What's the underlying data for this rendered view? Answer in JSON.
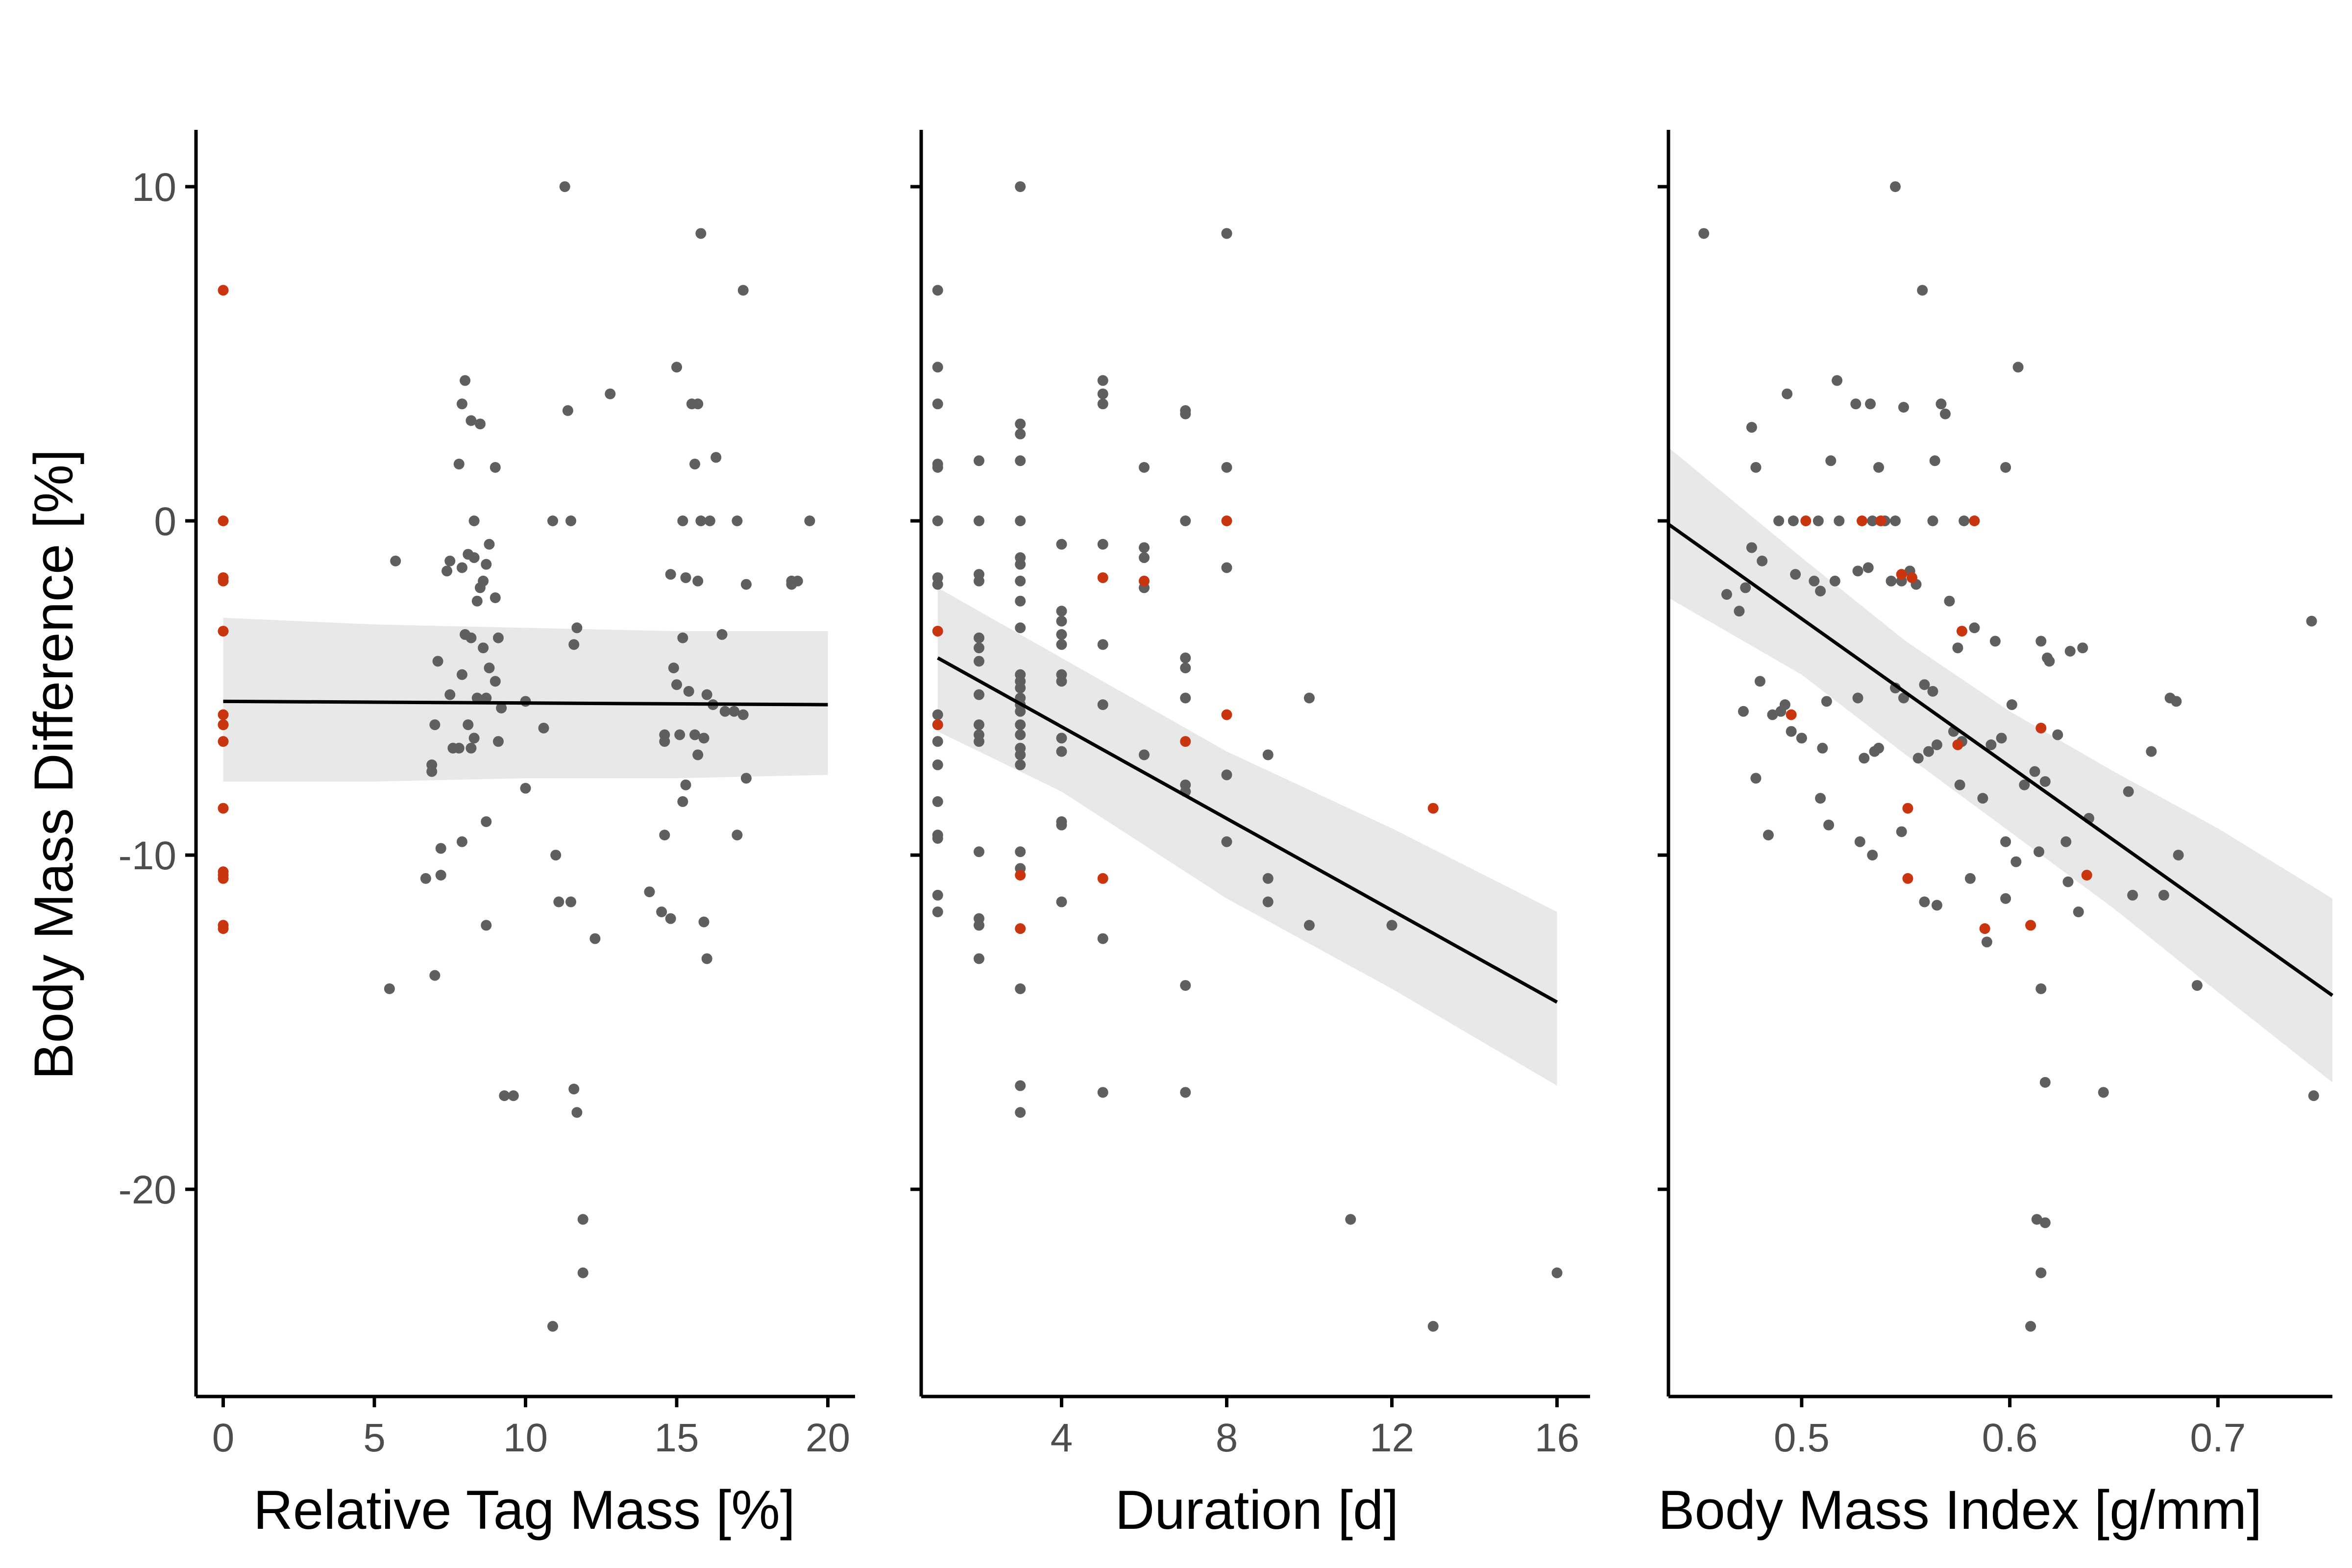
{
  "ylabel": "Body Mass Difference [%]",
  "colors": {
    "point": "#5f5f5f",
    "highlight": "#c8350e",
    "band": "#e8e8e8",
    "line": "#000000",
    "axis": "#000000"
  },
  "chart_data": [
    {
      "type": "scatter",
      "xlabel": "Relative Tag Mass [%]",
      "ylabel": "Body Mass Difference [%]",
      "xlim": [
        -0.9,
        20.9
      ],
      "ylim": [
        -26.2,
        11.7
      ],
      "xticks": [
        0,
        5,
        10,
        15,
        20
      ],
      "yticks": [
        10,
        0,
        -10,
        -20
      ],
      "ytick_labels": [
        "10",
        "0",
        "-10",
        "-20"
      ],
      "regression": {
        "x": [
          0,
          20
        ],
        "y": [
          -5.4,
          -5.5
        ]
      },
      "confidence_band": {
        "x": [
          0,
          5,
          10,
          15,
          20
        ],
        "lower": [
          -7.8,
          -7.8,
          -7.7,
          -7.7,
          -7.6
        ],
        "upper": [
          -2.9,
          -3.1,
          -3.2,
          -3.3,
          -3.3
        ]
      },
      "highlighted": {
        "x": [
          0,
          0,
          0,
          0,
          0,
          0,
          0,
          0,
          0,
          0,
          0,
          0,
          0,
          0,
          0
        ],
        "y": [
          6.9,
          0,
          -1.7,
          -1.8,
          -3.3,
          -5.8,
          -6.1,
          -6.6,
          -8.6,
          -10.6,
          -10.7,
          -12.1,
          -12.2,
          -6.1,
          -10.5
        ]
      },
      "points": {
        "x": [
          11.3,
          15.8,
          17.2,
          15.0,
          8.0,
          7.9,
          8.5,
          12.8,
          8.2,
          11.4,
          15.5,
          15.7,
          15.6,
          16.3,
          7.8,
          9.0,
          10.9,
          11.5,
          8.3,
          15.2,
          15.8,
          16.1,
          17.0,
          19.4,
          8.8,
          7.5,
          8.1,
          8.3,
          7.4,
          8.6,
          7.9,
          8.7,
          8.5,
          9.0,
          8.4,
          11.7,
          14.8,
          15.3,
          15.7,
          17.3,
          18.8,
          19.0,
          5.7,
          8.0,
          8.2,
          8.6,
          9.1,
          11.6,
          15.2,
          16.5,
          8.8,
          7.1,
          7.9,
          9.0,
          14.9,
          15.0,
          16.0,
          8.4,
          9.2,
          8.7,
          7.5,
          16.2,
          16.6,
          16.9,
          17.2,
          8.1,
          7.0,
          10.0,
          15.4,
          14.6,
          15.1,
          15.9,
          6.9,
          6.9,
          7.6,
          7.8,
          8.3,
          8.2,
          9.1,
          14.6,
          15.7,
          10.6,
          15.6,
          17.3,
          15.2,
          8.7,
          10.0,
          11.0,
          7.2,
          7.9,
          15.3,
          17.0,
          14.6,
          6.7,
          7.2,
          14.1,
          15.9,
          11.1,
          14.5,
          14.8,
          12.3,
          16.0,
          8.7,
          7.0,
          5.5,
          11.5,
          9.3,
          9.6,
          11.6,
          11.7,
          11.9,
          11.9,
          10.9,
          18.8
        ],
        "y": [
          10.0,
          8.6,
          6.9,
          4.6,
          4.2,
          3.5,
          2.9,
          3.8,
          3.0,
          3.3,
          3.5,
          3.5,
          1.7,
          1.9,
          1.7,
          1.6,
          0,
          0,
          0,
          0,
          0,
          0,
          0,
          0,
          -0.7,
          -1.2,
          -1.0,
          -1.1,
          -1.5,
          -1.8,
          -1.4,
          -1.3,
          -2.0,
          -2.3,
          -2.4,
          -3.2,
          -1.6,
          -1.7,
          -1.8,
          -1.9,
          -1.9,
          -1.8,
          -1.2,
          -3.4,
          -3.5,
          -3.8,
          -3.5,
          -3.7,
          -3.5,
          -3.4,
          -4.4,
          -4.2,
          -4.6,
          -4.8,
          -4.4,
          -4.9,
          -5.2,
          -5.3,
          -5.6,
          -5.3,
          -5.2,
          -5.5,
          -5.7,
          -5.7,
          -5.8,
          -6.1,
          -6.1,
          -5.4,
          -5.1,
          -6.4,
          -6.4,
          -6.5,
          -7.3,
          -7.5,
          -6.8,
          -6.8,
          -6.5,
          -6.8,
          -6.6,
          -6.6,
          -7.0,
          -6.2,
          -6.4,
          -7.7,
          -8.4,
          -9.0,
          -8.0,
          -10.0,
          -9.8,
          -9.6,
          -7.9,
          -9.4,
          -9.4,
          -10.7,
          -10.6,
          -11.1,
          -12.0,
          -11.4,
          -11.7,
          -11.9,
          -12.5,
          -13.1,
          -12.1,
          -13.6,
          -14.0,
          -11.4,
          -17.2,
          -17.2,
          -17.0,
          -17.7,
          -20.9,
          -22.5,
          -24.1,
          -1.8
        ]
      }
    },
    {
      "type": "scatter",
      "xlabel": "Duration [d]",
      "ylabel": "Body Mass Difference [%]",
      "xlim": [
        0.6,
        16.8
      ],
      "ylim": [
        -26.2,
        11.7
      ],
      "xticks": [
        4,
        8,
        12,
        16
      ],
      "yticks": [
        10,
        0,
        -10,
        -20
      ],
      "regression": {
        "x": [
          1,
          16
        ],
        "y": [
          -4.1,
          -14.4
        ]
      },
      "confidence_band": {
        "x": [
          1,
          4,
          8,
          12,
          16
        ],
        "lower": [
          -6.3,
          -8.1,
          -11.3,
          -14.0,
          -16.9
        ],
        "upper": [
          -2.0,
          -4.1,
          -6.9,
          -9.2,
          -11.7
        ]
      },
      "highlighted": {
        "x": [
          1,
          1,
          3,
          3,
          5,
          5,
          6,
          7,
          8,
          8,
          13
        ],
        "y": [
          -3.3,
          -6.1,
          -10.6,
          -12.2,
          -1.7,
          -10.7,
          -1.8,
          -6.6,
          0,
          -5.8,
          -8.6
        ]
      },
      "points": {
        "x": [
          3,
          8,
          1,
          1,
          1,
          1,
          1,
          1,
          1,
          1,
          1,
          1,
          1,
          1,
          1,
          1,
          1,
          1,
          1,
          2,
          2,
          2,
          2,
          2,
          2,
          2,
          2,
          2,
          2,
          2,
          2,
          2,
          2,
          2,
          3,
          3,
          3,
          3,
          3,
          3,
          3,
          3,
          3,
          3,
          3,
          3,
          3,
          3,
          3,
          3,
          3,
          3,
          3,
          3,
          3,
          3,
          3,
          3,
          3,
          4,
          4,
          4,
          4,
          4,
          4,
          4,
          4,
          4,
          4,
          4,
          4,
          5,
          5,
          5,
          5,
          5,
          5,
          5,
          5,
          6,
          6,
          6,
          6,
          6,
          7,
          7,
          7,
          7,
          7,
          7,
          7,
          7,
          7,
          7,
          8,
          8,
          8,
          8,
          8,
          9,
          9,
          9,
          10,
          10,
          12,
          11,
          13,
          16
        ],
        "y": [
          10.0,
          8.6,
          6.9,
          4.6,
          3.5,
          1.7,
          1.6,
          0,
          -1.7,
          -1.9,
          -5.8,
          -6.1,
          -6.6,
          -7.3,
          -8.4,
          -9.4,
          -9.5,
          -11.2,
          -11.7,
          1.8,
          0,
          -1.6,
          -1.8,
          -3.5,
          -3.8,
          -4.2,
          -5.2,
          -6.1,
          -6.4,
          -6.6,
          -9.9,
          -11.9,
          -12.1,
          -13.1,
          2.9,
          2.6,
          1.8,
          0,
          -1.1,
          -1.3,
          -1.8,
          -2.4,
          -3.2,
          -4.6,
          -4.8,
          -5.0,
          -5.3,
          -5.5,
          -5.7,
          -6.1,
          -6.4,
          -6.8,
          -7.0,
          -7.3,
          -9.9,
          -10.4,
          -14.0,
          -16.9,
          -17.7,
          -0.7,
          -2.7,
          -3.0,
          -3.4,
          -3.7,
          -4.6,
          -4.8,
          -6.5,
          -6.9,
          -9.0,
          -9.1,
          -11.4,
          4.2,
          3.8,
          3.5,
          -0.7,
          -3.7,
          -5.5,
          -12.5,
          -17.1,
          1.6,
          -0.8,
          -1.1,
          -2.0,
          -7.0,
          3.3,
          3.2,
          0,
          -4.1,
          -4.4,
          -5.3,
          -7.9,
          -8.1,
          -13.9,
          -17.1,
          8.6,
          1.6,
          -1.4,
          -7.6,
          -9.6,
          -7.0,
          -10.7,
          -11.4,
          -5.3,
          -12.1,
          -12.1,
          -20.9,
          -24.1,
          -22.5
        ]
      }
    },
    {
      "type": "scatter",
      "xlabel": "Body Mass Index [g/mm]",
      "ylabel": "Body Mass Difference [%]",
      "xlim": [
        0.436,
        0.755
      ],
      "ylim": [
        -26.2,
        11.7
      ],
      "xticks": [
        0.5,
        0.6,
        0.7
      ],
      "yticks": [
        10,
        0,
        -10,
        -20
      ],
      "regression": {
        "x": [
          0.436,
          0.755
        ],
        "y": [
          -0.1,
          -14.2
        ]
      },
      "confidence_band": {
        "x": [
          0.436,
          0.5,
          0.55,
          0.6,
          0.65,
          0.7,
          0.755
        ],
        "lower": [
          -2.3,
          -4.6,
          -7.0,
          -9.3,
          -11.6,
          -14.1,
          -16.8
        ],
        "upper": [
          2.2,
          -1.1,
          -3.6,
          -5.7,
          -7.5,
          -9.2,
          -11.3
        ]
      },
      "highlighted": {
        "x": [
          0.502,
          0.529,
          0.538,
          0.583,
          0.548,
          0.553,
          0.575,
          0.495,
          0.551,
          0.551,
          0.588,
          0.61,
          0.615,
          0.637,
          0.577
        ],
        "y": [
          0,
          0,
          0,
          0,
          -1.6,
          -1.7,
          -6.7,
          -5.8,
          -8.6,
          -10.7,
          -12.2,
          -12.1,
          -6.2,
          -10.6,
          -3.3
        ]
      },
      "points": {
        "x": [
          0.453,
          0.545,
          0.558,
          0.604,
          0.476,
          0.517,
          0.493,
          0.526,
          0.533,
          0.549,
          0.567,
          0.569,
          0.478,
          0.514,
          0.537,
          0.564,
          0.598,
          0.518,
          0.534,
          0.545,
          0.489,
          0.496,
          0.508,
          0.54,
          0.563,
          0.578,
          0.476,
          0.481,
          0.497,
          0.506,
          0.516,
          0.543,
          0.552,
          0.464,
          0.47,
          0.473,
          0.509,
          0.527,
          0.532,
          0.548,
          0.555,
          0.571,
          0.583,
          0.593,
          0.615,
          0.619,
          0.629,
          0.635,
          0.745,
          0.48,
          0.49,
          0.492,
          0.512,
          0.559,
          0.563,
          0.575,
          0.601,
          0.618,
          0.677,
          0.486,
          0.495,
          0.5,
          0.527,
          0.545,
          0.549,
          0.561,
          0.565,
          0.577,
          0.591,
          0.607,
          0.623,
          0.68,
          0.472,
          0.51,
          0.535,
          0.556,
          0.576,
          0.596,
          0.612,
          0.617,
          0.657,
          0.668,
          0.478,
          0.509,
          0.53,
          0.548,
          0.587,
          0.598,
          0.627,
          0.638,
          0.484,
          0.513,
          0.528,
          0.534,
          0.559,
          0.565,
          0.581,
          0.603,
          0.614,
          0.628,
          0.659,
          0.681,
          0.537,
          0.573,
          0.589,
          0.617,
          0.633,
          0.674,
          0.69,
          0.598,
          0.615,
          0.645,
          0.746,
          0.617,
          0.613,
          0.61,
          0.615
        ],
        "y": [
          8.6,
          10.0,
          6.9,
          4.6,
          2.8,
          4.2,
          3.8,
          3.5,
          3.5,
          3.4,
          3.5,
          3.2,
          1.6,
          1.8,
          1.6,
          1.8,
          1.6,
          0,
          0,
          0,
          0,
          0,
          0,
          0,
          0,
          0,
          -0.8,
          -1.2,
          -1.6,
          -1.8,
          -1.8,
          -1.8,
          -1.5,
          -2.2,
          -2.7,
          -2.0,
          -2.1,
          -1.5,
          -1.4,
          -1.8,
          -1.9,
          -2.4,
          -3.2,
          -3.6,
          -3.6,
          -4.2,
          -3.9,
          -3.8,
          -3.0,
          -4.8,
          -5.7,
          -5.5,
          -5.4,
          -4.9,
          -5.1,
          -3.8,
          -5.5,
          -4.1,
          -5.3,
          -5.8,
          -6.3,
          -6.5,
          -5.3,
          -5.0,
          -5.3,
          -6.9,
          -6.7,
          -6.6,
          -6.7,
          -7.9,
          -6.4,
          -5.4,
          -5.7,
          -6.8,
          -6.9,
          -7.1,
          -7.9,
          -6.5,
          -7.5,
          -7.8,
          -8.1,
          -6.9,
          -7.7,
          -8.3,
          -7.1,
          -9.3,
          -8.3,
          -9.6,
          -9.6,
          -8.9,
          -9.4,
          -9.1,
          -9.6,
          -10.0,
          -11.4,
          -11.5,
          -10.7,
          -10.2,
          -9.9,
          -10.8,
          -11.2,
          -10.0,
          -6.8,
          -6.3,
          -12.6,
          -16.8,
          -11.7,
          -11.2,
          -13.9,
          -11.3,
          -14.0,
          -17.1,
          -17.2,
          -21.0,
          -20.9,
          -24.1,
          -22.5
        ]
      }
    }
  ]
}
